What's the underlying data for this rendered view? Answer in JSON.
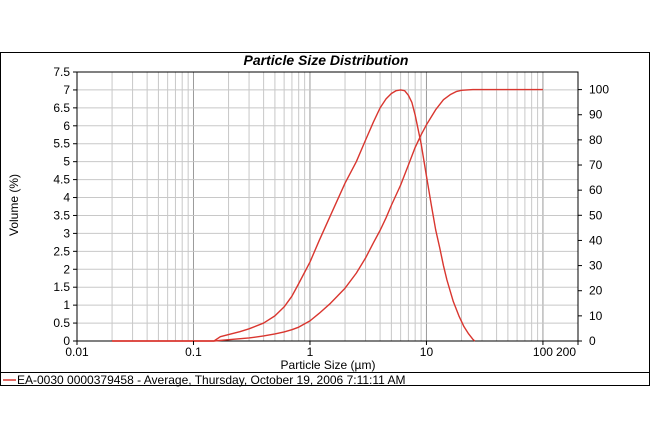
{
  "chart_data": {
    "type": "line",
    "title": "Particle Size Distribution",
    "xlabel": "Particle Size (µm)",
    "ylabel": "Volume (%)",
    "x_scale": "log",
    "xlim": [
      0.01,
      200
    ],
    "ylim": [
      0,
      7.5
    ],
    "y2lim": [
      0,
      107
    ],
    "grid": true,
    "x_ticks": [
      "0.01",
      "0.1",
      "1",
      "10",
      "100",
      "200"
    ],
    "y_ticks": [
      "0",
      "0.5",
      "1",
      "1.5",
      "2",
      "2.5",
      "3",
      "3.5",
      "4",
      "4.5",
      "5",
      "5.5",
      "6",
      "6.5",
      "7",
      "7.5"
    ],
    "y2_ticks": [
      "0",
      "10",
      "20",
      "30",
      "40",
      "50",
      "60",
      "70",
      "80",
      "90",
      "100"
    ],
    "legend": "bottom",
    "legend_label": "EA-0030 0000379458 - Average, Thursday, October 19, 2006 7:11:11 AM",
    "color": "#d9362f",
    "series": [
      {
        "axis": "left",
        "points": [
          [
            0.02,
            0
          ],
          [
            0.1,
            0
          ],
          [
            0.15,
            0
          ],
          [
            0.17,
            0.12
          ],
          [
            0.2,
            0.18
          ],
          [
            0.25,
            0.26
          ],
          [
            0.3,
            0.34
          ],
          [
            0.4,
            0.5
          ],
          [
            0.5,
            0.7
          ],
          [
            0.6,
            0.95
          ],
          [
            0.7,
            1.25
          ],
          [
            0.8,
            1.6
          ],
          [
            1.0,
            2.2
          ],
          [
            1.2,
            2.8
          ],
          [
            1.5,
            3.5
          ],
          [
            2.0,
            4.4
          ],
          [
            2.5,
            5.0
          ],
          [
            3.0,
            5.6
          ],
          [
            3.5,
            6.1
          ],
          [
            4.0,
            6.5
          ],
          [
            4.5,
            6.75
          ],
          [
            5.0,
            6.9
          ],
          [
            5.5,
            6.98
          ],
          [
            6.0,
            7.0
          ],
          [
            6.5,
            6.98
          ],
          [
            7.0,
            6.85
          ],
          [
            7.5,
            6.65
          ],
          [
            8.0,
            6.3
          ],
          [
            9.0,
            5.5
          ],
          [
            10.0,
            4.6
          ],
          [
            11.0,
            3.8
          ],
          [
            12.0,
            3.1
          ],
          [
            13.0,
            2.6
          ],
          [
            14.0,
            2.1
          ],
          [
            15.0,
            1.7
          ],
          [
            17.0,
            1.1
          ],
          [
            19.0,
            0.7
          ],
          [
            21.0,
            0.4
          ],
          [
            23.0,
            0.2
          ],
          [
            25.0,
            0.05
          ],
          [
            26.0,
            0
          ]
        ]
      },
      {
        "axis": "right",
        "points": [
          [
            0.02,
            0
          ],
          [
            0.1,
            0
          ],
          [
            0.15,
            0
          ],
          [
            0.2,
            0.5
          ],
          [
            0.3,
            1.2
          ],
          [
            0.4,
            2.0
          ],
          [
            0.5,
            2.8
          ],
          [
            0.6,
            3.6
          ],
          [
            0.7,
            4.5
          ],
          [
            0.8,
            5.5
          ],
          [
            1.0,
            8
          ],
          [
            1.2,
            11
          ],
          [
            1.5,
            15
          ],
          [
            2.0,
            21
          ],
          [
            2.5,
            27
          ],
          [
            3.0,
            33
          ],
          [
            3.5,
            39
          ],
          [
            4.0,
            44
          ],
          [
            4.5,
            49
          ],
          [
            5.0,
            54
          ],
          [
            6.0,
            62
          ],
          [
            7.0,
            70
          ],
          [
            8.0,
            77
          ],
          [
            9.0,
            82
          ],
          [
            10.0,
            86
          ],
          [
            12.0,
            92
          ],
          [
            14.0,
            96
          ],
          [
            16.0,
            98
          ],
          [
            18.0,
            99.2
          ],
          [
            20.0,
            99.7
          ],
          [
            25.0,
            100
          ],
          [
            50.0,
            100
          ],
          [
            100.0,
            100
          ]
        ]
      }
    ]
  }
}
